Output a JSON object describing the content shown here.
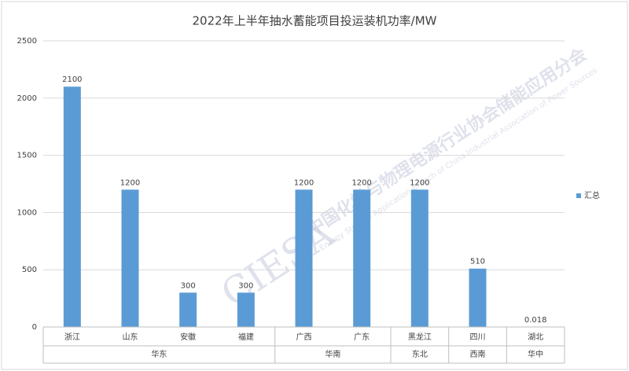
{
  "chart_data": {
    "type": "bar",
    "title": "2022年上半年抽水蓄能项目投运装机功率/MW",
    "categories": [
      "浙江",
      "山东",
      "安徽",
      "福建",
      "广西",
      "广东",
      "黑龙江",
      "四川",
      "湖北"
    ],
    "groups": [
      {
        "name": "华东",
        "categories": [
          "浙江",
          "山东",
          "安徽",
          "福建"
        ]
      },
      {
        "name": "华南",
        "categories": [
          "广西",
          "广东"
        ]
      },
      {
        "name": "东北",
        "categories": [
          "黑龙江"
        ]
      },
      {
        "name": "西南",
        "categories": [
          "四川"
        ]
      },
      {
        "name": "华中",
        "categories": [
          "湖北"
        ]
      }
    ],
    "series": [
      {
        "name": "汇总",
        "color": "#5b9bd5",
        "values": [
          2100,
          1200,
          300,
          300,
          1200,
          1200,
          1200,
          510,
          0.018
        ]
      }
    ],
    "ylim": [
      0,
      2500
    ],
    "yticks": [
      0,
      500,
      1000,
      1500,
      2000,
      2500
    ],
    "grid": true,
    "legend": "right"
  },
  "watermark": {
    "logo": "CIESA",
    "cn": "中国化学与物理电源行业协会储能应用分会",
    "en": "Energy Storage Application Branch of China Industrial Association of Power Sources"
  }
}
